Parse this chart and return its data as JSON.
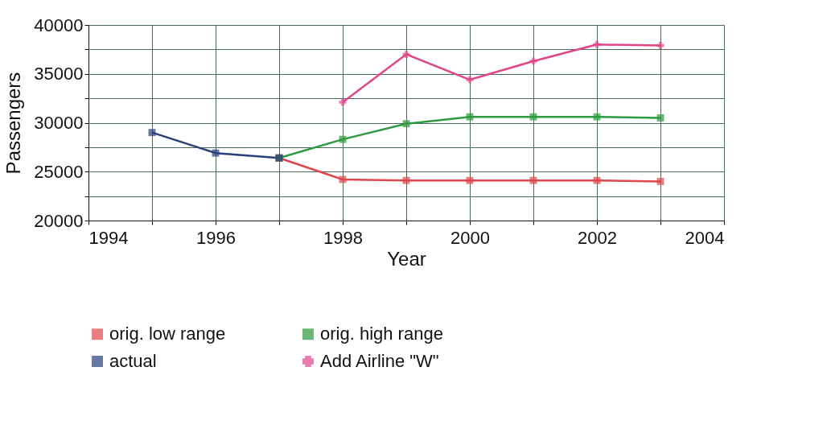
{
  "chart_data": {
    "type": "line",
    "xlabel": "Year",
    "ylabel": "Passengers",
    "xlim": [
      1994,
      2004
    ],
    "ylim": [
      20000,
      40000
    ],
    "xticks": [
      1994,
      {
        "value": 1995,
        "label": null
      },
      1996,
      {
        "value": 1997,
        "label": null
      },
      1998,
      {
        "value": 1999,
        "label": null
      },
      2000,
      {
        "value": 2001,
        "label": null
      },
      2002,
      {
        "value": 2003,
        "label": null
      },
      2004
    ],
    "yticks": [
      20000,
      {
        "value": 22500,
        "label": null
      },
      25000,
      {
        "value": 27500,
        "label": null
      },
      30000,
      {
        "value": 32500,
        "label": null
      },
      35000,
      {
        "value": 37500,
        "label": null
      },
      40000
    ],
    "grid": true,
    "legend": "bottom",
    "series": [
      {
        "name": "orig. low range",
        "color": "#e0474c",
        "marker": "square",
        "x": [
          1997,
          1998,
          1999,
          2000,
          2001,
          2002,
          2003
        ],
        "values": [
          26400,
          24200,
          24100,
          24100,
          24100,
          24100,
          24000
        ]
      },
      {
        "name": "orig. high range",
        "color": "#2e9a3e",
        "marker": "square",
        "x": [
          1997,
          1998,
          1999,
          2000,
          2001,
          2002,
          2003
        ],
        "values": [
          26400,
          28300,
          29900,
          30600,
          30600,
          30600,
          30500
        ]
      },
      {
        "name": "actual",
        "color": "#2b3f7a",
        "marker": "square",
        "x": [
          1995,
          1996,
          1997
        ],
        "values": [
          29000,
          26900,
          26400
        ]
      },
      {
        "name": "Add Airline \"W\"",
        "color": "#e0458a",
        "marker": "cross",
        "x": [
          1998,
          1999,
          2000,
          2001,
          2002,
          2003
        ],
        "values": [
          32100,
          37000,
          34400,
          36300,
          38000,
          37900
        ]
      }
    ]
  }
}
